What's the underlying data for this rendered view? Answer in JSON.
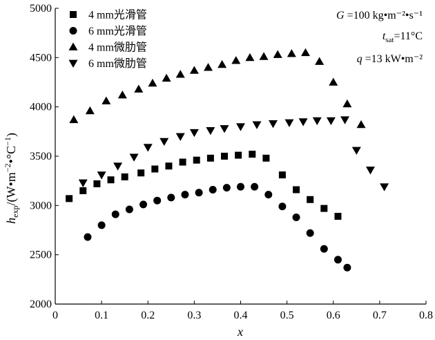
{
  "chart_data": {
    "type": "scatter",
    "xlabel": "x",
    "ylabel": "h_exp/(W·m⁻²·°C⁻¹)",
    "ylabel_parts": {
      "h": "h",
      "sub": "exp",
      "rest": "/(W•m",
      "e1": "−2",
      "mid": "•°C",
      "e2": "−1",
      "end": ")"
    },
    "xlim": [
      0,
      0.8
    ],
    "ylim": [
      2000,
      5000
    ],
    "xticks": [
      "0",
      "0.1",
      "0.2",
      "0.3",
      "0.4",
      "0.5",
      "0.6",
      "0.7",
      "0.8"
    ],
    "yticks": [
      "2000",
      "2500",
      "3000",
      "3500",
      "4000",
      "4500",
      "5000"
    ],
    "grid": false,
    "legend_position": "top-left",
    "annotations": {
      "line1": {
        "sym": "G",
        "rest": " =100 kg•m⁻²•s⁻¹"
      },
      "line2": {
        "sym": "t",
        "sub": "sat",
        "rest": "=11°C"
      },
      "line3": {
        "sym": "q",
        "rest": " =13 kW•m⁻²"
      }
    },
    "series": [
      {
        "name": "4 mm光滑管",
        "marker": "square",
        "x": [
          0.03,
          0.06,
          0.09,
          0.12,
          0.15,
          0.185,
          0.215,
          0.245,
          0.275,
          0.305,
          0.335,
          0.365,
          0.395,
          0.425,
          0.455,
          0.49,
          0.52,
          0.55,
          0.58,
          0.61
        ],
        "y": [
          3070,
          3150,
          3220,
          3260,
          3290,
          3330,
          3370,
          3400,
          3440,
          3460,
          3480,
          3500,
          3510,
          3520,
          3480,
          3310,
          3160,
          3060,
          2970,
          2890
        ]
      },
      {
        "name": "6 mm光滑管",
        "marker": "circle",
        "x": [
          0.07,
          0.1,
          0.13,
          0.16,
          0.19,
          0.22,
          0.25,
          0.28,
          0.31,
          0.34,
          0.37,
          0.4,
          0.43,
          0.46,
          0.49,
          0.52,
          0.55,
          0.58,
          0.61,
          0.63
        ],
        "y": [
          2680,
          2800,
          2910,
          2960,
          3010,
          3050,
          3080,
          3110,
          3130,
          3160,
          3180,
          3190,
          3190,
          3110,
          2990,
          2880,
          2720,
          2560,
          2450,
          2370
        ]
      },
      {
        "name": "4 mm微肋管",
        "marker": "triangle-up",
        "x": [
          0.04,
          0.075,
          0.11,
          0.145,
          0.18,
          0.21,
          0.24,
          0.27,
          0.3,
          0.33,
          0.36,
          0.39,
          0.42,
          0.45,
          0.48,
          0.51,
          0.54,
          0.57,
          0.6,
          0.63,
          0.66
        ],
        "y": [
          3870,
          3960,
          4060,
          4120,
          4180,
          4240,
          4290,
          4330,
          4370,
          4400,
          4430,
          4470,
          4500,
          4510,
          4530,
          4540,
          4550,
          4460,
          4250,
          4030,
          3820
        ]
      },
      {
        "name": "6 mm微肋管",
        "marker": "triangle-down",
        "x": [
          0.06,
          0.1,
          0.135,
          0.17,
          0.2,
          0.235,
          0.27,
          0.3,
          0.335,
          0.365,
          0.4,
          0.435,
          0.47,
          0.505,
          0.535,
          0.565,
          0.595,
          0.625,
          0.65,
          0.68,
          0.71
        ],
        "y": [
          3230,
          3310,
          3400,
          3490,
          3590,
          3650,
          3700,
          3740,
          3760,
          3780,
          3800,
          3820,
          3830,
          3840,
          3850,
          3860,
          3860,
          3870,
          3560,
          3360,
          3190
        ]
      }
    ]
  }
}
